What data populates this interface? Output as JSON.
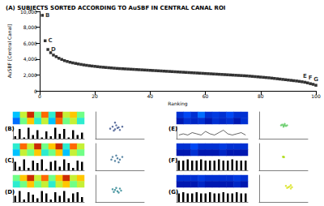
{
  "chart_data": [
    {
      "type": "scatter",
      "title": "(A) SUBJECTS SORTED ACCORDING TO AuSBF IN CENTRAL CANAL ROI",
      "x_label": "Ranking",
      "y_label": "AuSBF [Central Canal]",
      "x": [
        1,
        2,
        3,
        4,
        5,
        6,
        7,
        8,
        9,
        10,
        11,
        12,
        13,
        14,
        15,
        16,
        17,
        18,
        19,
        20,
        21,
        22,
        23,
        24,
        25,
        26,
        27,
        28,
        29,
        30,
        31,
        32,
        33,
        34,
        35,
        36,
        37,
        38,
        39,
        40,
        41,
        42,
        43,
        44,
        45,
        46,
        47,
        48,
        49,
        50,
        51,
        52,
        53,
        54,
        55,
        56,
        57,
        58,
        59,
        60,
        61,
        62,
        63,
        64,
        65,
        66,
        67,
        68,
        69,
        70,
        71,
        72,
        73,
        74,
        75,
        76,
        77,
        78,
        79,
        80,
        81,
        82,
        83,
        84,
        85,
        86,
        87,
        88,
        89,
        90,
        91,
        92,
        93,
        94,
        95,
        96,
        97,
        98,
        99,
        100
      ],
      "values": [
        9500,
        6300,
        5200,
        4800,
        4500,
        4300,
        4100,
        3950,
        3800,
        3700,
        3600,
        3520,
        3450,
        3380,
        3320,
        3260,
        3210,
        3160,
        3120,
        3080,
        3040,
        3000,
        2970,
        2940,
        2910,
        2880,
        2850,
        2820,
        2800,
        2780,
        2760,
        2740,
        2720,
        2700,
        2680,
        2660,
        2640,
        2620,
        2600,
        2580,
        2560,
        2540,
        2520,
        2500,
        2480,
        2460,
        2440,
        2420,
        2400,
        2380,
        2360,
        2340,
        2320,
        2300,
        2280,
        2260,
        2240,
        2220,
        2200,
        2180,
        2160,
        2140,
        2120,
        2100,
        2080,
        2060,
        2040,
        2020,
        2000,
        1980,
        1960,
        1940,
        1920,
        1900,
        1880,
        1850,
        1820,
        1790,
        1760,
        1730,
        1700,
        1670,
        1640,
        1600,
        1560,
        1520,
        1480,
        1440,
        1400,
        1360,
        1320,
        1280,
        1240,
        1190,
        1140,
        1080,
        1000,
        900,
        820,
        700
      ],
      "annotations": [
        {
          "label": "B",
          "x": 1
        },
        {
          "label": "C",
          "x": 2
        },
        {
          "label": "D",
          "x": 3
        },
        {
          "label": "E",
          "x": 96
        },
        {
          "label": "F",
          "x": 98
        },
        {
          "label": "G",
          "x": 100
        }
      ],
      "color": "#000000",
      "marker": "square",
      "xlim": [
        0,
        100
      ],
      "xticks": [
        0,
        20,
        40,
        60,
        80,
        100
      ],
      "ylim": [
        0,
        10000
      ],
      "yticks": [
        0,
        2000,
        4000,
        6000,
        8000,
        10000
      ],
      "grid": false
    },
    {
      "type": "panel",
      "title": "(B)",
      "spectrogram": [
        [
          0.3,
          0.6,
          0.9,
          0.5,
          0.8,
          0.4,
          0.9,
          0.6,
          0.7,
          0.5
        ],
        [
          0.2,
          0.5,
          0.7,
          0.4,
          0.6,
          0.3,
          0.8,
          0.5,
          0.6,
          0.4
        ]
      ],
      "spectrogram_range": [
        0,
        1
      ],
      "trace": {
        "type": "bar",
        "values": [
          2,
          8,
          1,
          9,
          3,
          7,
          1,
          6,
          2,
          9,
          4,
          8,
          1,
          7,
          3,
          5
        ],
        "ylim": [
          0,
          10
        ]
      },
      "scatter": {
        "points": [
          [
            800,
            700
          ],
          [
            900,
            800
          ],
          [
            700,
            900
          ],
          [
            1000,
            650
          ],
          [
            850,
            1000
          ],
          [
            600,
            750
          ],
          [
            950,
            850
          ],
          [
            750,
            600
          ],
          [
            1100,
            900
          ],
          [
            800,
            1200
          ]
        ],
        "xlim": [
          0,
          2000
        ],
        "ylim": [
          0,
          2000
        ],
        "color": "#3b528b"
      },
      "tick_labels": false
    },
    {
      "type": "panel",
      "title": "(E)",
      "spectrogram": [
        [
          0.1,
          0.15,
          0.1,
          0.2,
          0.1,
          0.12,
          0.1,
          0.15,
          0.1,
          0.1
        ],
        [
          0.05,
          0.1,
          0.08,
          0.1,
          0.05,
          0.1,
          0.08,
          0.1,
          0.05,
          0.1
        ]
      ],
      "spectrogram_range": [
        0,
        1
      ],
      "trace": {
        "type": "line",
        "values": [
          3,
          4,
          3,
          5,
          4,
          3,
          6,
          4,
          3,
          5,
          7,
          4,
          3,
          4,
          5,
          3
        ],
        "ylim": [
          0,
          10
        ]
      },
      "scatter": {
        "points": [
          [
            1000,
            1000
          ],
          [
            1100,
            950
          ],
          [
            950,
            1050
          ],
          [
            1050,
            1100
          ],
          [
            1000,
            900
          ],
          [
            1150,
            1000
          ],
          [
            900,
            1000
          ],
          [
            1050,
            1000
          ]
        ],
        "xlim": [
          0,
          2000
        ],
        "ylim": [
          0,
          2000
        ],
        "color": "#5ec962"
      },
      "tick_labels": false
    },
    {
      "type": "panel",
      "title": "(C)",
      "spectrogram": [
        [
          0.4,
          0.8,
          0.6,
          0.9,
          0.5,
          0.7,
          0.9,
          0.4,
          0.8,
          0.6
        ],
        [
          0.3,
          0.6,
          0.5,
          0.7,
          0.4,
          0.5,
          0.7,
          0.3,
          0.6,
          0.5
        ]
      ],
      "spectrogram_range": [
        0,
        1
      ],
      "trace": {
        "type": "bar",
        "values": [
          7,
          3,
          9,
          2,
          8,
          6,
          9,
          1,
          7,
          8,
          3,
          9,
          6,
          2,
          8,
          7
        ],
        "ylim": [
          0,
          10
        ]
      },
      "scatter": {
        "points": [
          [
            900,
            900
          ],
          [
            800,
            700
          ],
          [
            1000,
            800
          ],
          [
            700,
            1000
          ],
          [
            1100,
            1000
          ],
          [
            850,
            1100
          ],
          [
            950,
            600
          ],
          [
            650,
            800
          ]
        ],
        "xlim": [
          0,
          2000
        ],
        "ylim": [
          0,
          2000
        ],
        "color": "#31688e"
      },
      "tick_labels": false
    },
    {
      "type": "panel",
      "title": "(F)",
      "spectrogram": [
        [
          0.1,
          0.1,
          0.15,
          0.1,
          0.1,
          0.1,
          0.12,
          0.1,
          0.1,
          0.1
        ],
        [
          0.05,
          0.05,
          0.1,
          0.05,
          0.05,
          0.05,
          0.08,
          0.05,
          0.05,
          0.05
        ]
      ],
      "spectrogram_range": [
        0,
        1
      ],
      "trace": {
        "type": "bar",
        "values": [
          8,
          8,
          9,
          8,
          8,
          9,
          8,
          8,
          8,
          9,
          8,
          8,
          9,
          8,
          8,
          8
        ],
        "ylim": [
          0,
          10
        ]
      },
      "scatter": {
        "points": [
          [
            1000,
            1000
          ],
          [
            1020,
            980
          ],
          [
            980,
            1020
          ],
          [
            1010,
            1010
          ],
          [
            990,
            990
          ]
        ],
        "xlim": [
          0,
          2000
        ],
        "ylim": [
          0,
          2000
        ],
        "color": "#b5de2b"
      },
      "tick_labels": false
    },
    {
      "type": "panel",
      "title": "(D)",
      "spectrogram": [
        [
          0.5,
          0.7,
          0.9,
          0.6,
          0.8,
          0.5,
          0.7,
          0.9,
          0.6,
          0.7
        ],
        [
          0.4,
          0.5,
          0.7,
          0.5,
          0.6,
          0.4,
          0.6,
          0.7,
          0.5,
          0.6
        ]
      ],
      "spectrogram_range": [
        0,
        1
      ],
      "trace": {
        "type": "bar",
        "values": [
          5,
          9,
          2,
          8,
          6,
          3,
          9,
          7,
          2,
          8,
          5,
          9,
          3,
          7,
          8,
          4
        ],
        "ylim": [
          0,
          10
        ]
      },
      "scatter": {
        "points": [
          [
            900,
            800
          ],
          [
            800,
            900
          ],
          [
            1000,
            1000
          ],
          [
            750,
            750
          ],
          [
            1050,
            850
          ],
          [
            850,
            1050
          ],
          [
            950,
            700
          ],
          [
            700,
            950
          ]
        ],
        "xlim": [
          0,
          2000
        ],
        "ylim": [
          0,
          2000
        ],
        "color": "#26828e"
      },
      "tick_labels": false
    },
    {
      "type": "panel",
      "title": "(G)",
      "spectrogram": [
        [
          0.1,
          0.1,
          0.1,
          0.12,
          0.1,
          0.1,
          0.1,
          0.1,
          0.12,
          0.1
        ],
        [
          0.05,
          0.05,
          0.05,
          0.08,
          0.05,
          0.05,
          0.05,
          0.05,
          0.08,
          0.05
        ]
      ],
      "spectrogram_range": [
        0,
        1
      ],
      "trace": {
        "type": "bar",
        "values": [
          7,
          8,
          7,
          7,
          8,
          7,
          7,
          8,
          7,
          7,
          8,
          7,
          7,
          8,
          7,
          7
        ],
        "ylim": [
          0,
          10
        ]
      },
      "scatter": {
        "points": [
          [
            1200,
            1100
          ],
          [
            1300,
            1000
          ],
          [
            1100,
            1200
          ],
          [
            1250,
            1150
          ],
          [
            1350,
            1100
          ],
          [
            1150,
            1050
          ],
          [
            1300,
            1250
          ]
        ],
        "xlim": [
          0,
          2000
        ],
        "ylim": [
          0,
          2000
        ],
        "color": "#d8e219"
      },
      "tick_labels": false
    }
  ]
}
